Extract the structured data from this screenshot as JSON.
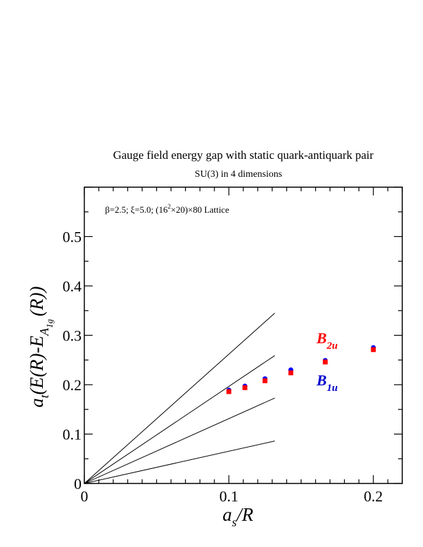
{
  "chart_data": {
    "type": "scatter",
    "title": "Gauge field energy gap with static quark-antiquark pair",
    "subtitle": "SU(3) in 4 dimensions",
    "annotation": {
      "prefix": "β=2.5;  ξ=5.0; (16",
      "sup": "2",
      "suffix": "×20)×80 Lattice"
    },
    "xlabel": {
      "main": "a",
      "sub": "s",
      "rest": "/R"
    },
    "ylabel": {
      "main": "a",
      "sub": "t",
      "mid": "(E(R)-E",
      "subA": "A",
      "subsub": "1g",
      "end": "(R))"
    },
    "xlim": [
      0,
      0.22
    ],
    "ylim": [
      0,
      0.6
    ],
    "x_ticks": [
      {
        "value": 0,
        "label": "0"
      },
      {
        "value": 0.1,
        "label": "0.1"
      },
      {
        "value": 0.2,
        "label": "0.2"
      }
    ],
    "y_ticks": [
      {
        "value": 0,
        "label": "0"
      },
      {
        "value": 0.1,
        "label": "0.1"
      },
      {
        "value": 0.2,
        "label": "0.2"
      },
      {
        "value": 0.3,
        "label": "0.3"
      },
      {
        "value": 0.4,
        "label": "0.4"
      },
      {
        "value": 0.5,
        "label": "0.5"
      }
    ],
    "grid": false,
    "series": [
      {
        "name": "B1u",
        "label_main": "B",
        "label_sub": "1u",
        "color": "#0000ff",
        "marker": "circle",
        "points": [
          {
            "x": 0.1,
            "y": 0.189
          },
          {
            "x": 0.1111,
            "y": 0.197
          },
          {
            "x": 0.125,
            "y": 0.212
          },
          {
            "x": 0.1429,
            "y": 0.23
          },
          {
            "x": 0.1667,
            "y": 0.249
          },
          {
            "x": 0.2,
            "y": 0.275
          }
        ]
      },
      {
        "name": "B2u",
        "label_main": "B",
        "label_sub": "2u",
        "color": "#ff0000",
        "marker": "square",
        "points": [
          {
            "x": 0.1,
            "y": 0.186
          },
          {
            "x": 0.1111,
            "y": 0.194
          },
          {
            "x": 0.125,
            "y": 0.208
          },
          {
            "x": 0.1429,
            "y": 0.224
          },
          {
            "x": 0.1667,
            "y": 0.246
          },
          {
            "x": 0.2,
            "y": 0.271
          }
        ]
      }
    ],
    "reference_lines": [
      {
        "x_end": 0.1318,
        "y_end": 0.345
      },
      {
        "x_end": 0.1318,
        "y_end": 0.259
      },
      {
        "x_end": 0.1318,
        "y_end": 0.173
      },
      {
        "x_end": 0.1318,
        "y_end": 0.086
      }
    ]
  }
}
